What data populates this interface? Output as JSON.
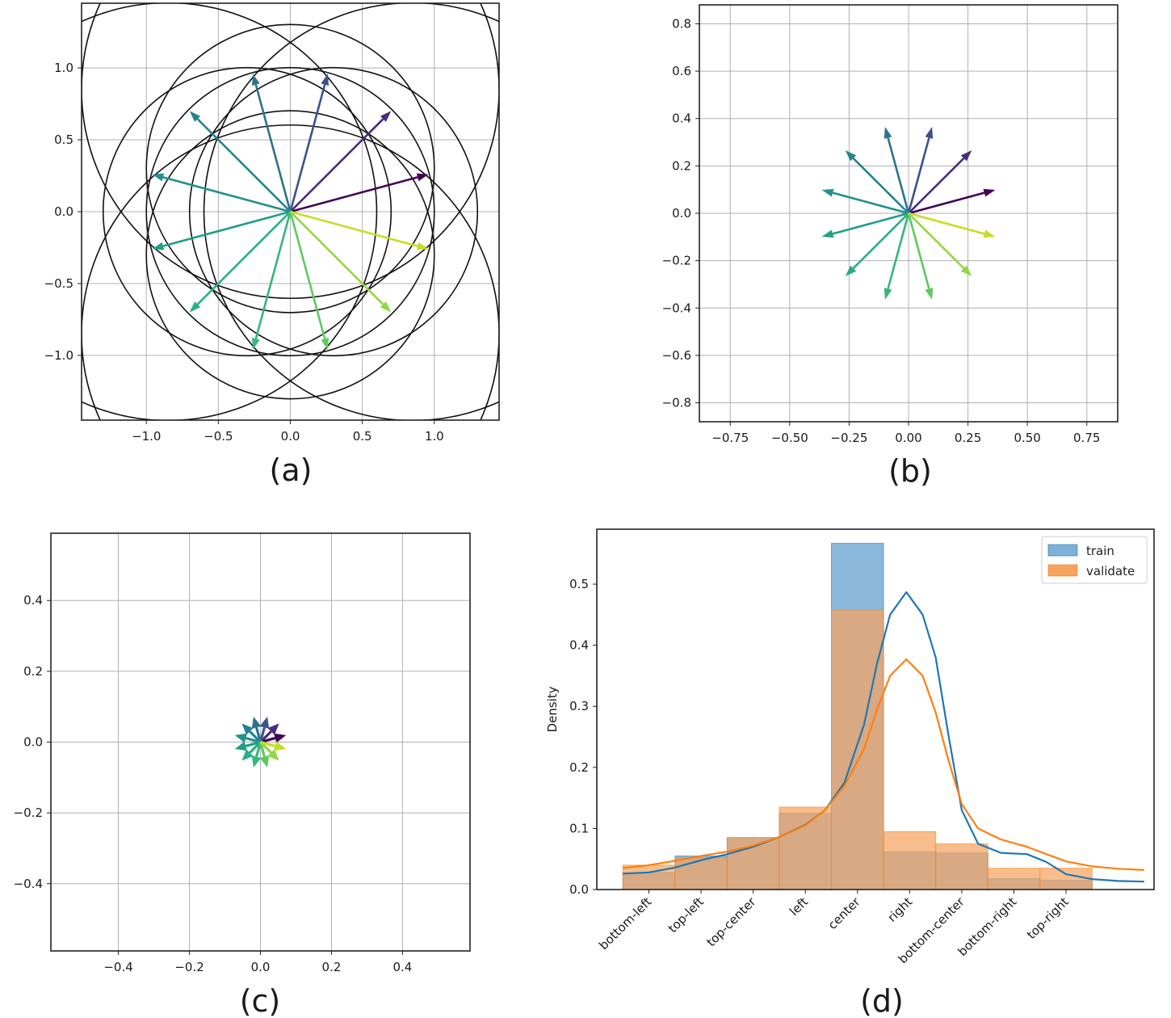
{
  "chart_data": [
    {
      "id": "a",
      "type": "quiver",
      "label": "(a)",
      "xlim": [
        -1.45,
        1.45
      ],
      "ylim": [
        -1.45,
        1.45
      ],
      "xticks": [
        -1.0,
        -0.5,
        0.0,
        0.5,
        1.0
      ],
      "yticks": [
        -1.0,
        -0.5,
        0.0,
        0.5,
        1.0
      ],
      "xtick_labels": [
        "−1.0",
        "−0.5",
        "0.0",
        "0.5",
        "1.0"
      ],
      "ytick_labels": [
        "−1.0",
        "−0.5",
        "0.0",
        "0.5",
        "1.0"
      ],
      "grid": true,
      "vectors": [
        {
          "x": 0.96,
          "y": 0.26,
          "color": "#440154"
        },
        {
          "x": 0.7,
          "y": 0.7,
          "color": "#472d7b"
        },
        {
          "x": 0.26,
          "y": 0.96,
          "color": "#3b528b"
        },
        {
          "x": -0.26,
          "y": 0.96,
          "color": "#2c728e"
        },
        {
          "x": -0.7,
          "y": 0.7,
          "color": "#26828e"
        },
        {
          "x": -0.96,
          "y": 0.26,
          "color": "#21918c"
        },
        {
          "x": -0.96,
          "y": -0.26,
          "color": "#1f9e89"
        },
        {
          "x": -0.7,
          "y": -0.7,
          "color": "#28ae80"
        },
        {
          "x": -0.26,
          "y": -0.96,
          "color": "#35b779"
        },
        {
          "x": 0.26,
          "y": -0.96,
          "color": "#5ec962"
        },
        {
          "x": 0.7,
          "y": -0.7,
          "color": "#90d743"
        },
        {
          "x": 0.96,
          "y": -0.26,
          "color": "#c2df23"
        }
      ],
      "circles": [
        {
          "cx": 0,
          "cy": 0,
          "r": 1.0
        },
        {
          "cx": 0.3,
          "cy": 0,
          "r": 1.0
        },
        {
          "cx": -0.3,
          "cy": 0,
          "r": 1.0
        },
        {
          "cx": 0,
          "cy": 0.3,
          "r": 1.0
        },
        {
          "cx": 0,
          "cy": -0.3,
          "r": 1.0
        },
        {
          "cx": 0.85,
          "cy": 0,
          "r": 1.45
        },
        {
          "cx": -0.85,
          "cy": 0,
          "r": 1.45
        },
        {
          "cx": 0,
          "cy": 0.85,
          "r": 1.45
        },
        {
          "cx": 0,
          "cy": -0.85,
          "r": 1.45
        }
      ]
    },
    {
      "id": "b",
      "type": "quiver",
      "label": "(b)",
      "xlim": [
        -0.88,
        0.88
      ],
      "ylim": [
        -0.88,
        0.88
      ],
      "xticks": [
        -0.75,
        -0.5,
        -0.25,
        0.0,
        0.25,
        0.5,
        0.75
      ],
      "yticks": [
        -0.8,
        -0.6,
        -0.4,
        -0.2,
        0.0,
        0.2,
        0.4,
        0.6,
        0.8
      ],
      "xtick_labels": [
        "−0.75",
        "−0.50",
        "−0.25",
        "0.00",
        "0.25",
        "0.50",
        "0.75"
      ],
      "ytick_labels": [
        "−0.8",
        "−0.6",
        "−0.4",
        "−0.2",
        "0.0",
        "0.2",
        "0.4",
        "0.6",
        "0.8"
      ],
      "grid": true,
      "scale": 0.38
    },
    {
      "id": "c",
      "type": "quiver",
      "label": "(c)",
      "xlim": [
        -0.59,
        0.59
      ],
      "ylim": [
        -0.59,
        0.59
      ],
      "xticks": [
        -0.4,
        -0.2,
        0.0,
        0.2,
        0.4
      ],
      "yticks": [
        -0.4,
        -0.2,
        0.0,
        0.2,
        0.4
      ],
      "xtick_labels": [
        "−0.4",
        "−0.2",
        "0.0",
        "0.2",
        "0.4"
      ],
      "ytick_labels": [
        "−0.4",
        "−0.2",
        "0.0",
        "0.2",
        "0.4"
      ],
      "grid": true,
      "scale": 0.075
    },
    {
      "id": "d",
      "type": "histogram_kde",
      "label": "(d)",
      "ylabel": "Density",
      "ylim": [
        0,
        0.59
      ],
      "yticks": [
        0.0,
        0.1,
        0.2,
        0.3,
        0.4,
        0.5
      ],
      "ytick_labels": [
        "0.0",
        "0.1",
        "0.2",
        "0.3",
        "0.4",
        "0.5"
      ],
      "categories": [
        "bottom-left",
        "top-left",
        "top-center",
        "left",
        "center",
        "right",
        "bottom-center",
        "bottom-right",
        "top-right"
      ],
      "bin_edges": [
        0,
        0.8,
        1.6,
        2.4,
        3.2,
        4.0,
        4.8,
        5.6,
        6.4,
        7.2
      ],
      "series": [
        {
          "name": "train",
          "color": "#1f77b4",
          "fill": "#7fb0d8",
          "values": [
            0.028,
            0.055,
            0.085,
            0.125,
            0.567,
            0.062,
            0.06,
            0.018,
            0.015
          ],
          "kde": [
            [
              0,
              0.026
            ],
            [
              0.4,
              0.028
            ],
            [
              0.8,
              0.036
            ],
            [
              1.2,
              0.048
            ],
            [
              1.6,
              0.058
            ],
            [
              2.0,
              0.07
            ],
            [
              2.4,
              0.086
            ],
            [
              2.8,
              0.106
            ],
            [
              3.1,
              0.13
            ],
            [
              3.4,
              0.175
            ],
            [
              3.7,
              0.27
            ],
            [
              3.9,
              0.37
            ],
            [
              4.1,
              0.45
            ],
            [
              4.35,
              0.487
            ],
            [
              4.6,
              0.45
            ],
            [
              4.8,
              0.38
            ],
            [
              5.0,
              0.25
            ],
            [
              5.2,
              0.13
            ],
            [
              5.45,
              0.075
            ],
            [
              5.8,
              0.06
            ],
            [
              6.2,
              0.058
            ],
            [
              6.5,
              0.045
            ],
            [
              6.8,
              0.025
            ],
            [
              7.2,
              0.017
            ],
            [
              7.6,
              0.014
            ],
            [
              8.0,
              0.013
            ]
          ]
        },
        {
          "name": "validate",
          "color": "#ff7f0e",
          "fill": "#f5a35f",
          "values": [
            0.04,
            0.052,
            0.085,
            0.135,
            0.458,
            0.095,
            0.075,
            0.035,
            0.035
          ],
          "kde": [
            [
              0,
              0.035
            ],
            [
              0.4,
              0.04
            ],
            [
              0.8,
              0.047
            ],
            [
              1.2,
              0.055
            ],
            [
              1.6,
              0.062
            ],
            [
              2.0,
              0.072
            ],
            [
              2.4,
              0.086
            ],
            [
              2.8,
              0.105
            ],
            [
              3.1,
              0.13
            ],
            [
              3.4,
              0.17
            ],
            [
              3.7,
              0.23
            ],
            [
              3.9,
              0.295
            ],
            [
              4.1,
              0.35
            ],
            [
              4.35,
              0.377
            ],
            [
              4.6,
              0.35
            ],
            [
              4.8,
              0.29
            ],
            [
              5.0,
              0.21
            ],
            [
              5.2,
              0.14
            ],
            [
              5.45,
              0.1
            ],
            [
              5.8,
              0.082
            ],
            [
              6.2,
              0.07
            ],
            [
              6.5,
              0.058
            ],
            [
              6.8,
              0.046
            ],
            [
              7.2,
              0.038
            ],
            [
              7.6,
              0.034
            ],
            [
              8.0,
              0.032
            ]
          ]
        }
      ]
    }
  ]
}
